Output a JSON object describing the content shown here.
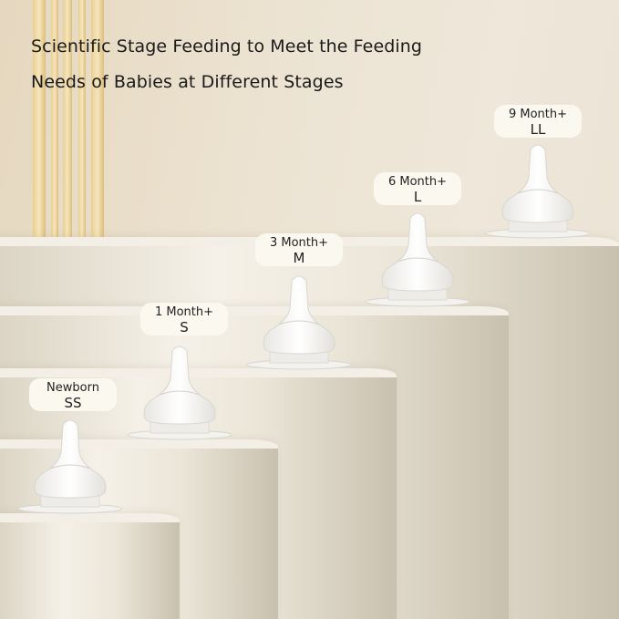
{
  "headline": {
    "line1": "Scientific Stage Feeding to Meet the Feeding",
    "line2": "Needs of Babies at Different Stages"
  },
  "stages": [
    {
      "age": "Newborn",
      "size": "SS"
    },
    {
      "age": "1 Month+",
      "size": "S"
    },
    {
      "age": "3 Month+",
      "size": "M"
    },
    {
      "age": "6 Month+",
      "size": "L"
    },
    {
      "age": "9 Month+",
      "size": "LL"
    }
  ],
  "colors": {
    "background": "#ece3d2",
    "pedestal": "#f0ebe0",
    "gold_stripes": "#e9cf93",
    "label_bg": "#fbf8f0"
  }
}
